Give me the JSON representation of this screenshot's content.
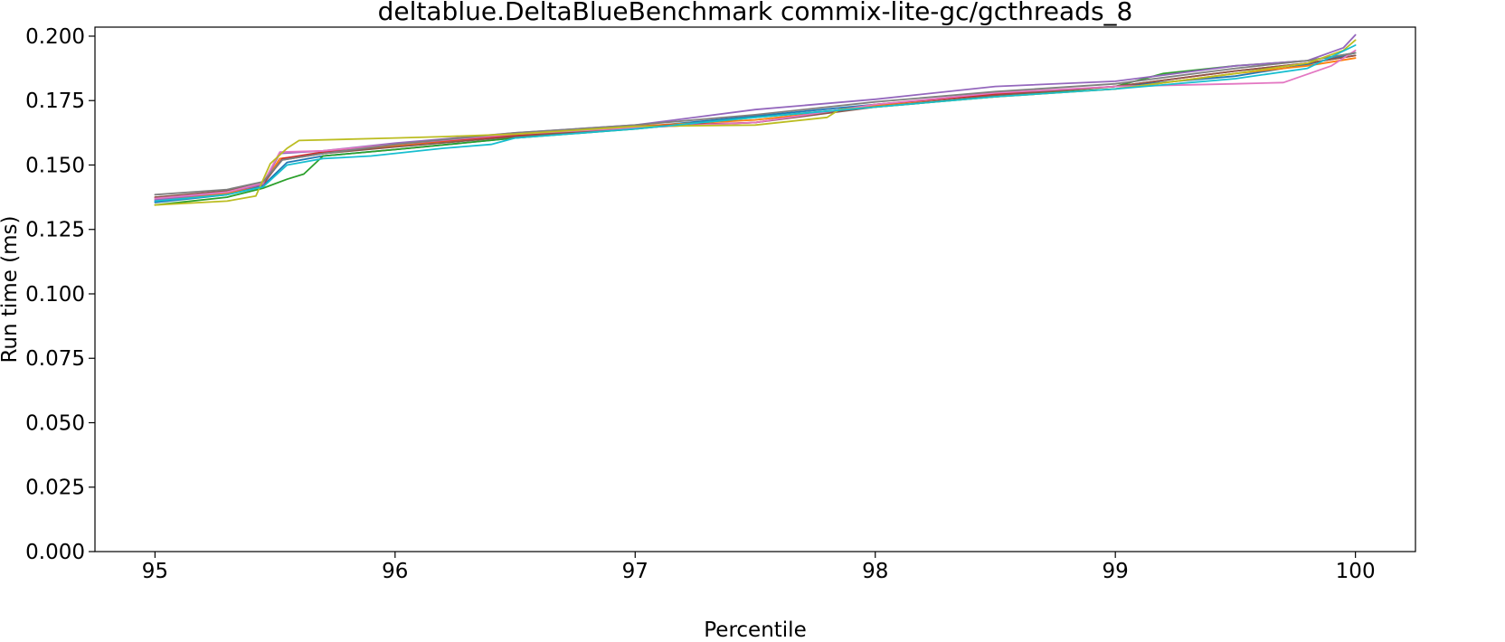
{
  "chart_data": {
    "type": "line",
    "title": "deltablue.DeltaBlueBenchmark commix-lite-gc/gcthreads_8",
    "xlabel": "Percentile",
    "ylabel": "Run time (ms)",
    "xlim": [
      94.75,
      100.25
    ],
    "ylim": [
      0.0,
      0.2035
    ],
    "xticks": [
      95,
      96,
      97,
      98,
      99,
      100
    ],
    "xtick_labels": [
      "95",
      "96",
      "97",
      "98",
      "99",
      "100"
    ],
    "yticks": [
      0.0,
      0.025,
      0.05,
      0.075,
      0.1,
      0.125,
      0.15,
      0.175,
      0.2
    ],
    "ytick_labels": [
      "0.000",
      "0.025",
      "0.050",
      "0.075",
      "0.100",
      "0.125",
      "0.150",
      "0.175",
      "0.200"
    ],
    "grid": false,
    "legend": "none",
    "series": [
      {
        "color": "#1f77b4",
        "x": [
          95.0,
          95.3,
          95.45,
          95.55,
          95.7,
          96.0,
          96.5,
          97.0,
          97.5,
          98.0,
          98.5,
          99.0,
          99.5,
          99.8,
          100.0
        ],
        "y": [
          0.1355,
          0.1385,
          0.142,
          0.151,
          0.1535,
          0.156,
          0.1605,
          0.1645,
          0.169,
          0.1735,
          0.1775,
          0.1805,
          0.1845,
          0.189,
          0.1935
        ]
      },
      {
        "color": "#ff7f0e",
        "x": [
          95.0,
          95.3,
          95.45,
          95.52,
          95.7,
          96.0,
          96.5,
          97.0,
          97.5,
          97.8,
          98.0,
          98.5,
          99.0,
          99.5,
          99.8,
          100.0
        ],
        "y": [
          0.1365,
          0.139,
          0.1425,
          0.1525,
          0.1545,
          0.1575,
          0.1615,
          0.165,
          0.1675,
          0.1705,
          0.173,
          0.1765,
          0.1795,
          0.1855,
          0.1885,
          0.1915
        ]
      },
      {
        "color": "#2ca02c",
        "x": [
          95.0,
          95.3,
          95.45,
          95.55,
          95.62,
          95.7,
          96.0,
          96.5,
          97.0,
          97.5,
          98.0,
          98.5,
          99.0,
          99.2,
          99.5,
          99.8,
          100.0
        ],
        "y": [
          0.1345,
          0.1375,
          0.141,
          0.1445,
          0.1465,
          0.1535,
          0.156,
          0.1605,
          0.164,
          0.1685,
          0.1725,
          0.1765,
          0.1805,
          0.1855,
          0.1885,
          0.1905,
          0.1935
        ]
      },
      {
        "color": "#d62728",
        "x": [
          95.0,
          95.3,
          95.45,
          95.53,
          95.7,
          96.0,
          96.5,
          97.0,
          97.5,
          98.0,
          98.5,
          99.0,
          99.5,
          99.8,
          100.0
        ],
        "y": [
          0.1375,
          0.1395,
          0.1425,
          0.1525,
          0.155,
          0.158,
          0.1615,
          0.165,
          0.1665,
          0.1735,
          0.1775,
          0.1805,
          0.1865,
          0.1895,
          0.1925
        ]
      },
      {
        "color": "#9467bd",
        "x": [
          95.0,
          95.3,
          95.45,
          95.52,
          95.7,
          96.0,
          96.5,
          97.0,
          97.5,
          98.0,
          98.5,
          99.0,
          99.5,
          99.8,
          99.95,
          100.0
        ],
        "y": [
          0.1365,
          0.1395,
          0.1425,
          0.1545,
          0.1555,
          0.1585,
          0.1625,
          0.1655,
          0.1715,
          0.1755,
          0.1805,
          0.1825,
          0.1885,
          0.1905,
          0.1955,
          0.2005
        ]
      },
      {
        "color": "#8c564b",
        "x": [
          95.0,
          95.3,
          95.45,
          95.53,
          95.7,
          96.0,
          96.5,
          97.0,
          97.5,
          98.0,
          98.5,
          99.0,
          99.5,
          99.8,
          100.0
        ],
        "y": [
          0.1375,
          0.14,
          0.143,
          0.152,
          0.1545,
          0.157,
          0.161,
          0.1645,
          0.1665,
          0.1725,
          0.177,
          0.1805,
          0.1865,
          0.1895,
          0.1925
        ]
      },
      {
        "color": "#e377c2",
        "x": [
          95.0,
          95.3,
          95.45,
          95.52,
          95.7,
          96.0,
          96.5,
          97.0,
          97.5,
          98.0,
          98.5,
          99.0,
          99.5,
          99.7,
          99.9,
          100.0
        ],
        "y": [
          0.137,
          0.1395,
          0.143,
          0.155,
          0.1555,
          0.158,
          0.162,
          0.1645,
          0.1665,
          0.1735,
          0.178,
          0.1805,
          0.1815,
          0.182,
          0.1885,
          0.1945
        ]
      },
      {
        "color": "#7f7f7f",
        "x": [
          95.0,
          95.3,
          95.45,
          95.53,
          95.7,
          96.0,
          96.5,
          97.0,
          97.5,
          98.0,
          98.5,
          99.0,
          99.5,
          99.8,
          100.0
        ],
        "y": [
          0.1385,
          0.1405,
          0.1435,
          0.152,
          0.1545,
          0.158,
          0.1625,
          0.1655,
          0.1695,
          0.1745,
          0.1785,
          0.1815,
          0.1875,
          0.1905,
          0.1935
        ]
      },
      {
        "color": "#bcbd22",
        "x": [
          95.0,
          95.3,
          95.42,
          95.48,
          95.55,
          95.6,
          96.0,
          96.2,
          96.5,
          97.0,
          97.5,
          97.8,
          97.85,
          98.0,
          98.5,
          99.0,
          99.5,
          99.8,
          99.95,
          100.0
        ],
        "y": [
          0.1345,
          0.136,
          0.138,
          0.1505,
          0.1565,
          0.1595,
          0.1605,
          0.161,
          0.162,
          0.165,
          0.1655,
          0.1685,
          0.1715,
          0.1725,
          0.1765,
          0.1795,
          0.1855,
          0.1895,
          0.1945,
          0.1985
        ]
      },
      {
        "color": "#17becf",
        "x": [
          95.0,
          95.3,
          95.45,
          95.55,
          95.7,
          95.9,
          96.2,
          96.4,
          96.5,
          97.0,
          97.5,
          98.0,
          98.5,
          99.0,
          99.5,
          99.8,
          100.0
        ],
        "y": [
          0.136,
          0.1385,
          0.1415,
          0.15,
          0.1525,
          0.1535,
          0.1565,
          0.158,
          0.1605,
          0.164,
          0.1685,
          0.1725,
          0.1765,
          0.1795,
          0.1835,
          0.1875,
          0.1965
        ]
      }
    ]
  }
}
